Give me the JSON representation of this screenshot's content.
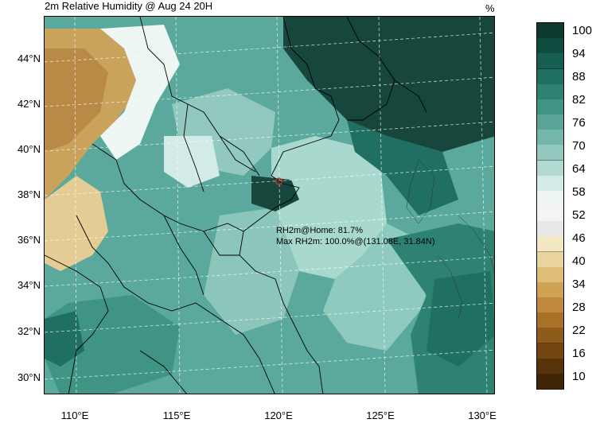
{
  "title": "2m Relative Humidity @ Aug 24 20H",
  "units": "%",
  "lat_labels": [
    "44°N",
    "42°N",
    "40°N",
    "38°N",
    "36°N",
    "34°N",
    "32°N",
    "30°N"
  ],
  "lon_labels": [
    "110°E",
    "115°E",
    "120°E",
    "125°E",
    "130°E"
  ],
  "annotation": {
    "home": "RH2m@Home: 81.7%",
    "max": "Max RH2m: 100.0%@(131.08E, 31.84N)"
  },
  "home_point": {
    "lon": 120.1,
    "lat": 38.1
  },
  "colorbar": {
    "labels": [
      "100",
      "94",
      "88",
      "82",
      "76",
      "70",
      "64",
      "58",
      "52",
      "46",
      "40",
      "34",
      "28",
      "22",
      "16",
      "10"
    ],
    "colors": [
      "#0b3b30",
      "#0f4c40",
      "#165e50",
      "#1f7062",
      "#2e8272",
      "#3f9484",
      "#58a597",
      "#74b6aa",
      "#93c8be",
      "#b3dad2",
      "#d2ebe6",
      "#eef6f4",
      "#f4f4f4",
      "#e8e8e8",
      "#f3e7c4",
      "#ead49e",
      "#dfbd76",
      "#d0a254",
      "#c0893b",
      "#a97128",
      "#8f5b1b",
      "#734510",
      "#58330a",
      "#3f2406"
    ]
  },
  "colors": {
    "land_base": "#5aa99c",
    "sea": "#a9d8cf",
    "dry": "#c9a25c",
    "very_wet": "#17463c",
    "home_marker": "#d9342b"
  }
}
